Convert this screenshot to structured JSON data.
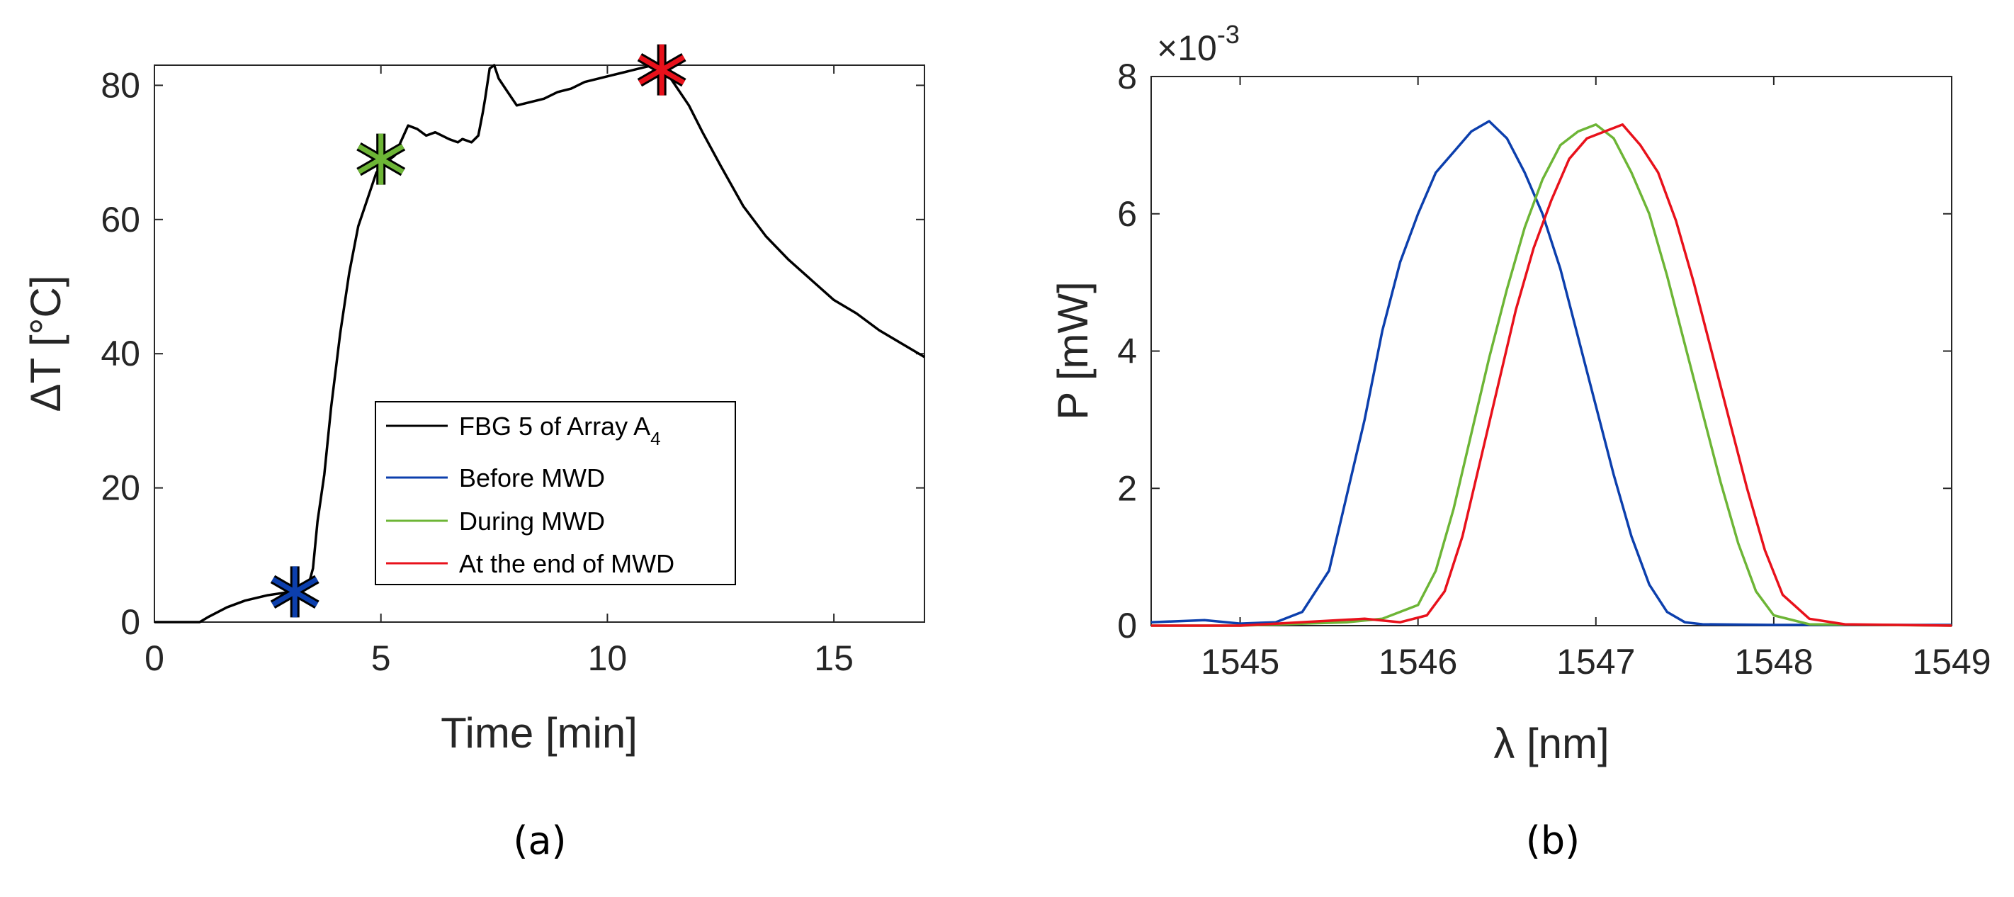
{
  "chart_data": [
    {
      "type": "line",
      "panel_label": "(a)",
      "xlabel": "Time [min]",
      "ylabel": "ΔT [°C]",
      "xlim": [
        0,
        17
      ],
      "ylim": [
        0,
        83
      ],
      "xticks": [
        0,
        5,
        10,
        15
      ],
      "yticks": [
        0,
        20,
        40,
        60,
        80
      ],
      "legend_position": "lower-center",
      "series": [
        {
          "name": "FBG 5 of Array A4",
          "legend_main": "FBG 5 of Array A",
          "legend_sub": "4",
          "color": "#000000",
          "x": [
            0,
            0.5,
            1.0,
            1.2,
            1.6,
            2.0,
            2.5,
            3.0,
            3.2,
            3.4,
            3.5,
            3.6,
            3.75,
            3.9,
            4.1,
            4.3,
            4.5,
            4.7,
            4.9,
            5.1,
            5.3,
            5.5,
            5.6,
            5.8,
            6.0,
            6.2,
            6.5,
            6.7,
            6.8,
            7.0,
            7.15,
            7.25,
            7.3,
            7.4,
            7.5,
            7.6,
            7.8,
            8.0,
            8.3,
            8.6,
            8.9,
            9.2,
            9.5,
            9.8,
            10.1,
            10.4,
            10.7,
            11.0,
            11.3,
            11.5,
            11.8,
            12.1,
            12.5,
            13.0,
            13.5,
            14.0,
            14.5,
            15.0,
            15.5,
            16.0,
            16.5,
            17.0
          ],
          "y": [
            0,
            0,
            0,
            0.8,
            2.2,
            3.2,
            4.0,
            4.5,
            4.8,
            5.5,
            8.0,
            15.0,
            22.0,
            32.0,
            43.0,
            52.0,
            59.0,
            63.0,
            67.0,
            68.5,
            69.5,
            72.5,
            74.0,
            73.5,
            72.5,
            73.0,
            72.0,
            71.5,
            72.0,
            71.5,
            72.5,
            76.0,
            78.0,
            82.5,
            83.0,
            81.0,
            79.0,
            77.0,
            77.5,
            78.0,
            79.0,
            79.5,
            80.5,
            81.0,
            81.5,
            82.0,
            82.5,
            83.0,
            82.0,
            80.0,
            77.0,
            73.0,
            68.0,
            62.0,
            57.5,
            54.0,
            51.0,
            48.0,
            46.0,
            43.5,
            41.5,
            39.5
          ]
        }
      ],
      "markers": [
        {
          "name": "Before MWD",
          "x": 3.1,
          "y": 4.5,
          "color": "#0C3FAD"
        },
        {
          "name": "During MWD",
          "x": 5.0,
          "y": 69.0,
          "color": "#6DB536"
        },
        {
          "name": "At the end of MWD",
          "x": 11.2,
          "y": 82.3,
          "color": "#E8111B"
        }
      ]
    },
    {
      "type": "line",
      "panel_label": "(b)",
      "xlabel": "λ [nm]",
      "ylabel": "P [mW]",
      "xlim": [
        1544.5,
        1549
      ],
      "ylim": [
        0,
        8
      ],
      "y_multiplier": "×10",
      "y_multiplier_exponent": "-3",
      "xticks": [
        1545,
        1546,
        1547,
        1548,
        1549
      ],
      "yticks": [
        0,
        2,
        4,
        6,
        8
      ],
      "series": [
        {
          "name": "Before MWD",
          "color": "#0C3FAD",
          "x": [
            1544.5,
            1544.8,
            1545.0,
            1545.2,
            1545.35,
            1545.5,
            1545.6,
            1545.7,
            1545.8,
            1545.9,
            1546.0,
            1546.1,
            1546.2,
            1546.3,
            1546.4,
            1546.5,
            1546.6,
            1546.7,
            1546.8,
            1546.9,
            1547.0,
            1547.1,
            1547.2,
            1547.3,
            1547.4,
            1547.5,
            1547.6,
            1548.0,
            1549.0
          ],
          "y": [
            0.05,
            0.08,
            0.03,
            0.05,
            0.2,
            0.8,
            1.9,
            3.0,
            4.3,
            5.3,
            6.0,
            6.6,
            6.9,
            7.2,
            7.35,
            7.1,
            6.6,
            6.0,
            5.2,
            4.2,
            3.2,
            2.2,
            1.3,
            0.6,
            0.2,
            0.05,
            0.02,
            0.01,
            0.01
          ]
        },
        {
          "name": "During MWD",
          "color": "#6DB536",
          "x": [
            1544.5,
            1545.0,
            1545.6,
            1545.8,
            1546.0,
            1546.1,
            1546.2,
            1546.3,
            1546.4,
            1546.5,
            1546.6,
            1546.7,
            1546.8,
            1546.9,
            1547.0,
            1547.1,
            1547.2,
            1547.3,
            1547.4,
            1547.5,
            1547.6,
            1547.7,
            1547.8,
            1547.9,
            1548.0,
            1548.2,
            1549.0
          ],
          "y": [
            0.0,
            0.0,
            0.05,
            0.1,
            0.3,
            0.8,
            1.7,
            2.8,
            3.9,
            4.9,
            5.8,
            6.5,
            7.0,
            7.2,
            7.3,
            7.1,
            6.6,
            6.0,
            5.1,
            4.1,
            3.1,
            2.1,
            1.2,
            0.5,
            0.15,
            0.02,
            0.0
          ]
        },
        {
          "name": "At the end of MWD",
          "color": "#E8111B",
          "x": [
            1544.5,
            1545.0,
            1545.7,
            1545.9,
            1546.05,
            1546.15,
            1546.25,
            1546.35,
            1546.45,
            1546.55,
            1546.65,
            1546.75,
            1546.85,
            1546.95,
            1547.05,
            1547.15,
            1547.25,
            1547.35,
            1547.45,
            1547.55,
            1547.65,
            1547.75,
            1547.85,
            1547.95,
            1548.05,
            1548.2,
            1548.4,
            1549.0
          ],
          "y": [
            0.0,
            0.0,
            0.1,
            0.05,
            0.15,
            0.5,
            1.3,
            2.4,
            3.5,
            4.6,
            5.5,
            6.2,
            6.8,
            7.1,
            7.2,
            7.3,
            7.0,
            6.6,
            5.9,
            5.0,
            4.0,
            3.0,
            2.0,
            1.1,
            0.45,
            0.1,
            0.02,
            0.0
          ]
        }
      ]
    }
  ]
}
